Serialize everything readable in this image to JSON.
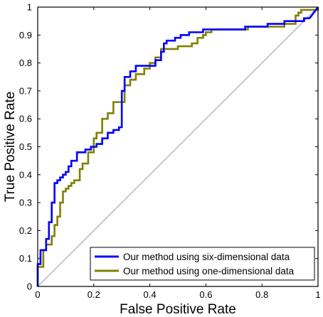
{
  "chart_data": {
    "type": "line",
    "title": "",
    "xlabel": "False Positive Rate",
    "ylabel": "True Positive Rate",
    "xlim": [
      0,
      1
    ],
    "ylim": [
      0,
      1
    ],
    "x_ticks": [
      "0",
      "0.2",
      "0.4",
      "0.6",
      "0.8",
      "1"
    ],
    "y_ticks": [
      "0",
      "0.1",
      "0.2",
      "0.3",
      "0.4",
      "0.5",
      "0.6",
      "0.7",
      "0.8",
      "0.9",
      "1"
    ],
    "grid": false,
    "legend_position": "bottom-right",
    "series": [
      {
        "name": "Our method using six-dimensional data",
        "color": "#0000ff",
        "x": [
          0,
          0,
          0.01,
          0.01,
          0.03,
          0.03,
          0.04,
          0.04,
          0.05,
          0.05,
          0.06,
          0.06,
          0.07,
          0.07,
          0.08,
          0.08,
          0.09,
          0.09,
          0.1,
          0.1,
          0.11,
          0.11,
          0.12,
          0.12,
          0.14,
          0.14,
          0.17,
          0.17,
          0.19,
          0.19,
          0.21,
          0.21,
          0.23,
          0.23,
          0.25,
          0.25,
          0.27,
          0.27,
          0.29,
          0.29,
          0.3,
          0.3,
          0.31,
          0.31,
          0.33,
          0.33,
          0.35,
          0.35,
          0.42,
          0.42,
          0.44,
          0.44,
          0.45,
          0.45,
          0.46,
          0.46,
          0.49,
          0.49,
          0.51,
          0.51,
          0.54,
          0.54,
          0.56,
          0.56,
          0.59,
          0.59,
          0.62,
          0.62,
          0.71,
          0.71,
          0.74,
          0.74,
          0.76,
          0.76,
          0.79,
          0.79,
          0.82,
          0.82,
          0.85,
          0.85,
          0.88,
          0.88,
          0.92,
          0.92,
          0.95,
          0.95,
          0.97,
          0.97,
          1
        ],
        "y": [
          0,
          0.08,
          0.08,
          0.13,
          0.13,
          0.17,
          0.17,
          0.23,
          0.23,
          0.3,
          0.3,
          0.37,
          0.37,
          0.38,
          0.38,
          0.39,
          0.39,
          0.4,
          0.4,
          0.41,
          0.41,
          0.43,
          0.43,
          0.45,
          0.45,
          0.48,
          0.48,
          0.49,
          0.49,
          0.5,
          0.5,
          0.51,
          0.51,
          0.53,
          0.53,
          0.55,
          0.55,
          0.56,
          0.56,
          0.57,
          0.57,
          0.7,
          0.7,
          0.75,
          0.75,
          0.77,
          0.77,
          0.79,
          0.79,
          0.81,
          0.81,
          0.84,
          0.84,
          0.87,
          0.87,
          0.88,
          0.88,
          0.89,
          0.89,
          0.9,
          0.9,
          0.91,
          0.91,
          0.91,
          0.91,
          0.92,
          0.92,
          0.92,
          0.92,
          0.92,
          0.92,
          0.93,
          0.93,
          0.93,
          0.93,
          0.93,
          0.93,
          0.94,
          0.94,
          0.94,
          0.94,
          0.95,
          0.95,
          0.95,
          0.95,
          0.96,
          0.96,
          0.96,
          1
        ]
      },
      {
        "name": "Our method using one-dimensional data",
        "color": "#808000",
        "x": [
          0,
          0,
          0.02,
          0.02,
          0.03,
          0.03,
          0.05,
          0.05,
          0.06,
          0.06,
          0.07,
          0.07,
          0.08,
          0.08,
          0.09,
          0.09,
          0.1,
          0.1,
          0.11,
          0.11,
          0.12,
          0.12,
          0.13,
          0.13,
          0.15,
          0.15,
          0.16,
          0.16,
          0.18,
          0.18,
          0.2,
          0.2,
          0.21,
          0.21,
          0.23,
          0.23,
          0.25,
          0.25,
          0.27,
          0.27,
          0.29,
          0.29,
          0.31,
          0.31,
          0.33,
          0.33,
          0.35,
          0.35,
          0.38,
          0.38,
          0.4,
          0.4,
          0.42,
          0.42,
          0.44,
          0.44,
          0.46,
          0.46,
          0.5,
          0.5,
          0.55,
          0.55,
          0.57,
          0.57,
          0.59,
          0.59,
          0.6,
          0.6,
          0.62,
          0.62,
          0.66,
          0.66,
          0.75,
          0.75,
          0.88,
          0.88,
          0.92,
          0.92,
          0.93,
          0.93,
          0.94,
          0.94,
          1,
          1
        ],
        "y": [
          0,
          0.07,
          0.07,
          0.13,
          0.13,
          0.15,
          0.15,
          0.18,
          0.18,
          0.22,
          0.22,
          0.25,
          0.25,
          0.3,
          0.3,
          0.34,
          0.34,
          0.35,
          0.35,
          0.36,
          0.36,
          0.37,
          0.37,
          0.38,
          0.38,
          0.42,
          0.42,
          0.44,
          0.44,
          0.48,
          0.48,
          0.53,
          0.53,
          0.55,
          0.55,
          0.6,
          0.6,
          0.62,
          0.62,
          0.66,
          0.66,
          0.66,
          0.66,
          0.72,
          0.72,
          0.74,
          0.74,
          0.76,
          0.76,
          0.78,
          0.78,
          0.8,
          0.8,
          0.82,
          0.82,
          0.85,
          0.85,
          0.85,
          0.85,
          0.86,
          0.86,
          0.87,
          0.87,
          0.89,
          0.89,
          0.9,
          0.9,
          0.91,
          0.91,
          0.92,
          0.92,
          0.92,
          0.92,
          0.93,
          0.93,
          0.94,
          0.94,
          0.97,
          0.97,
          0.98,
          0.98,
          0.99,
          0.99,
          1
        ]
      },
      {
        "name": "",
        "color": "#c8c8c8",
        "x": [
          0,
          1
        ],
        "y": [
          0,
          1
        ]
      }
    ]
  }
}
